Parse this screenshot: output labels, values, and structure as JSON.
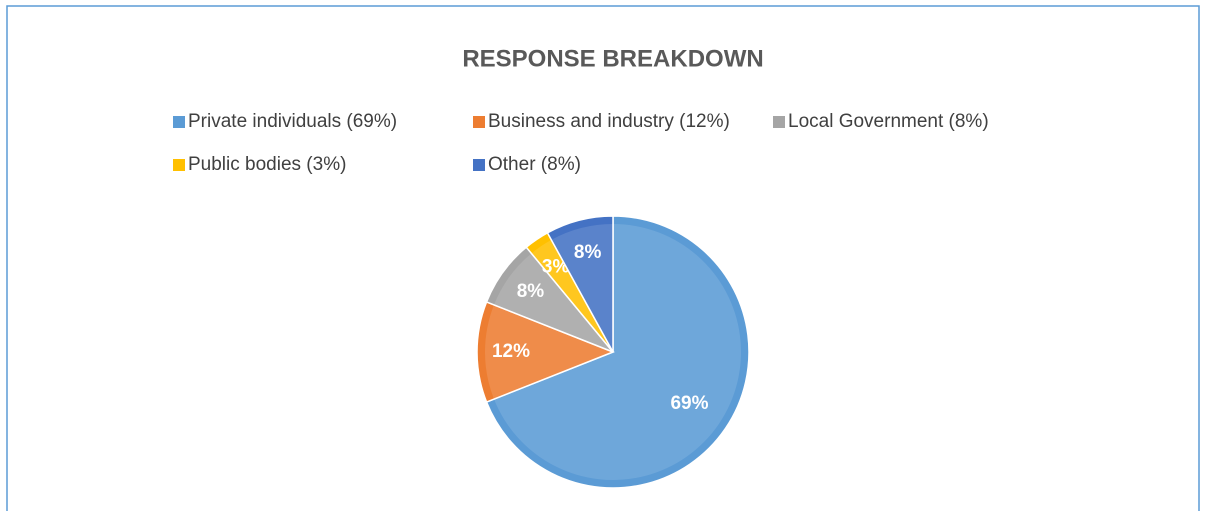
{
  "chart_data": {
    "type": "pie",
    "title": "RESPONSE BREAKDOWN",
    "categories": [
      "Private individuals (69%)",
      "Business and industry (12%)",
      "Local Government (8%)",
      "Public bodies (3%)",
      "Other (8%)"
    ],
    "values": [
      69,
      12,
      8,
      3,
      8
    ],
    "value_labels": [
      "69%",
      "12%",
      "8%",
      "3%",
      "8%"
    ],
    "colors": [
      "#5b9bd5",
      "#ed7d31",
      "#a5a5a5",
      "#ffc000",
      "#4472c4"
    ],
    "legend": "top"
  }
}
